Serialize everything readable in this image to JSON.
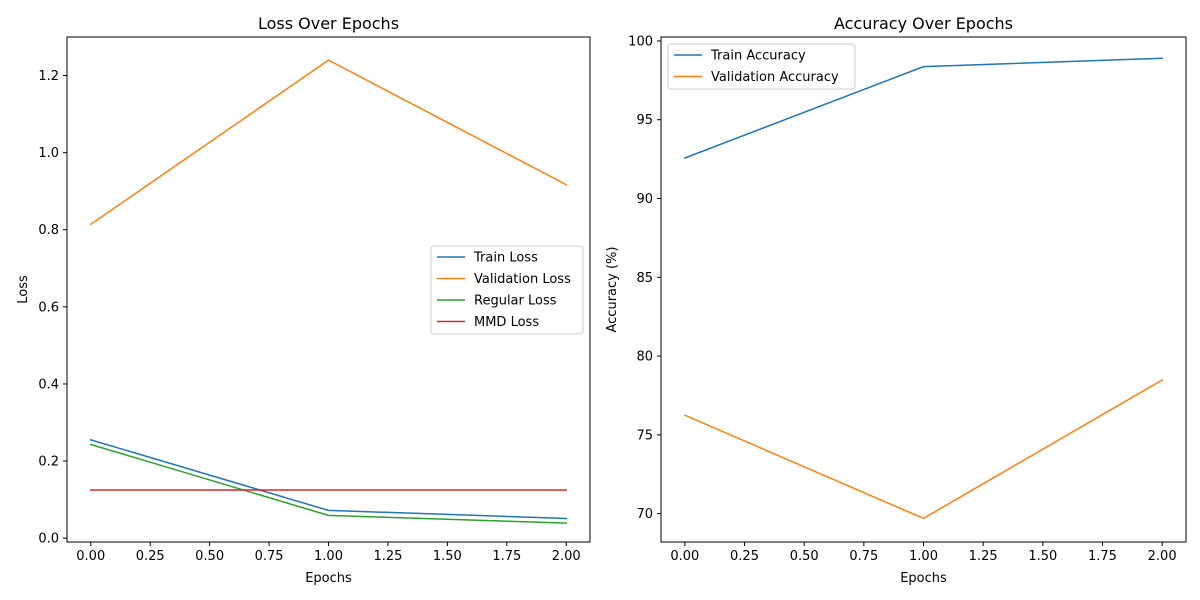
{
  "chart_data": [
    {
      "type": "line",
      "title": "Loss Over Epochs",
      "xlabel": "Epochs",
      "ylabel": "Loss",
      "x": [
        0,
        1,
        2
      ],
      "xlim": [
        -0.1,
        2.1
      ],
      "ylim": [
        -0.01,
        1.3
      ],
      "xticks": [
        "0.00",
        "0.25",
        "0.50",
        "0.75",
        "1.00",
        "1.25",
        "1.50",
        "1.75",
        "2.00"
      ],
      "xtick_values": [
        0,
        0.25,
        0.5,
        0.75,
        1.0,
        1.25,
        1.5,
        1.75,
        2.0
      ],
      "yticks": [
        "0.0",
        "0.2",
        "0.4",
        "0.6",
        "0.8",
        "1.0",
        "1.2"
      ],
      "ytick_values": [
        0,
        0.2,
        0.4,
        0.6,
        0.8,
        1.0,
        1.2
      ],
      "legend_position": "center-right",
      "series": [
        {
          "name": "Train Loss",
          "color": "#1f77b4",
          "values": [
            0.255,
            0.072,
            0.051
          ]
        },
        {
          "name": "Validation Loss",
          "color": "#ff7f0e",
          "values": [
            0.814,
            1.24,
            0.917
          ]
        },
        {
          "name": "Regular Loss",
          "color": "#2ca02c",
          "values": [
            0.243,
            0.059,
            0.039
          ]
        },
        {
          "name": "MMD Loss",
          "color": "#d62728",
          "values": [
            0.125,
            0.125,
            0.125
          ]
        }
      ]
    },
    {
      "type": "line",
      "title": "Accuracy Over Epochs",
      "xlabel": "Epochs",
      "ylabel": "Accuracy (%)",
      "x": [
        0,
        1,
        2
      ],
      "xlim": [
        -0.1,
        2.1
      ],
      "ylim": [
        68.2,
        100.25
      ],
      "xticks": [
        "0.00",
        "0.25",
        "0.50",
        "0.75",
        "1.00",
        "1.25",
        "1.50",
        "1.75",
        "2.00"
      ],
      "xtick_values": [
        0,
        0.25,
        0.5,
        0.75,
        1.0,
        1.25,
        1.5,
        1.75,
        2.0
      ],
      "yticks": [
        "70",
        "75",
        "80",
        "85",
        "90",
        "95",
        "100"
      ],
      "ytick_values": [
        70,
        75,
        80,
        85,
        90,
        95,
        100
      ],
      "legend_position": "top-left",
      "series": [
        {
          "name": "Train Accuracy",
          "color": "#1f77b4",
          "values": [
            92.57,
            98.37,
            98.9
          ]
        },
        {
          "name": "Validation Accuracy",
          "color": "#ff7f0e",
          "values": [
            76.25,
            69.7,
            78.48
          ]
        }
      ]
    }
  ]
}
